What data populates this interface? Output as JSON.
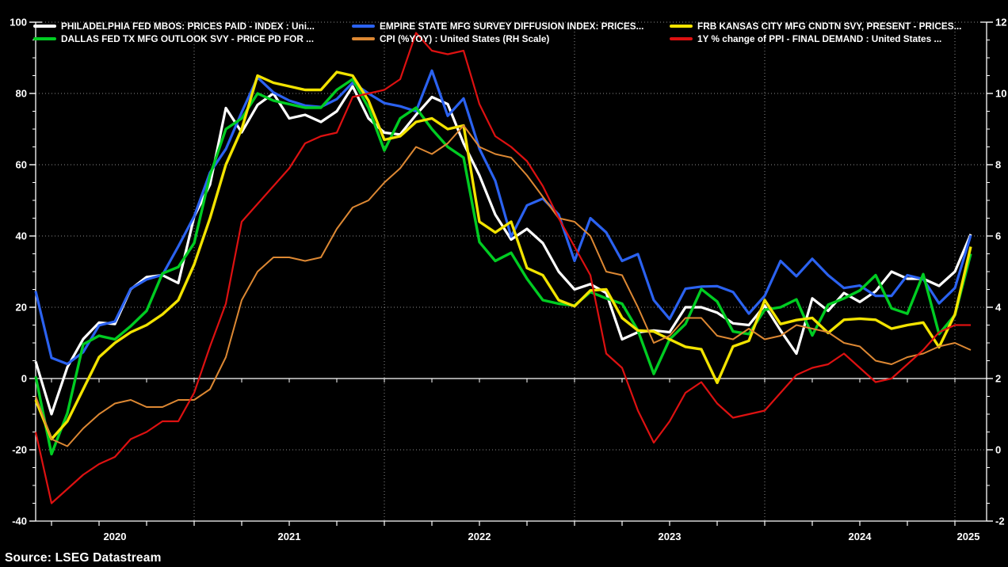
{
  "window": {
    "background": "#000000"
  },
  "source": "Source: LSEG Datastream",
  "legend": {
    "items": [
      {
        "series": "philly",
        "label": "PHILADELPHIA FED MBOS: PRICES PAID - INDEX : Uni...",
        "color": "#ffffff"
      },
      {
        "series": "dallas",
        "label": "DALLAS FED TX MFG OUTLOOK SVY - PRICE PD FOR ...",
        "color": "#00cc22"
      },
      {
        "series": "empire",
        "label": "EMPIRE STATE MFG SURVEY DIFFUSION INDEX: PRICES...",
        "color": "#2b62f0"
      },
      {
        "series": "cpi",
        "label": "CPI (%YOY) : United States (RH Scale)",
        "color": "#dd8833"
      },
      {
        "series": "kc",
        "label": "FRB KANSAS CITY MFG CNDTN SVY, PRESENT - PRICES...",
        "color": "#f2e300"
      },
      {
        "series": "ppi",
        "label": "1Y % change of PPI - FINAL DEMAND : United States ...",
        "color": "#dd1111"
      }
    ]
  },
  "chart_data": {
    "type": "line",
    "title": "",
    "frequency": "monthly",
    "x_start": "2020-03",
    "x_end": "2025-02",
    "grid": "dotted",
    "legend_position": "top",
    "x_tick_labels": [
      "2020",
      "2021",
      "2022",
      "2023",
      "2024",
      "2025"
    ],
    "left_axis": {
      "min": -40,
      "max": 100,
      "tick_step": 20,
      "tick_labels": [
        "100",
        "80",
        "60",
        "40",
        "20",
        "0",
        "-20",
        "-40"
      ]
    },
    "right_axis": {
      "min": -2,
      "max": 12,
      "tick_step": 2,
      "tick_labels": [
        "12",
        "10",
        "8",
        "6",
        "4",
        "2",
        "0",
        "-2"
      ]
    },
    "series": [
      {
        "key": "philly",
        "name": "PHILADELPHIA FED MBOS: PRICES PAID - INDEX : Uni...",
        "axis": "left",
        "color": "#ffffff",
        "width": 3.2,
        "values": [
          4.8,
          -10,
          3.2,
          11.1,
          15.7,
          15.3,
          25.1,
          28.5,
          29,
          26.8,
          45.4,
          54.4,
          75.9,
          69.1,
          76.8,
          80,
          73,
          74,
          72,
          75,
          82,
          73,
          69,
          68.5,
          74,
          79,
          77,
          66,
          57,
          46,
          39,
          42,
          38,
          30,
          25,
          26.5,
          24,
          11,
          13,
          13.5,
          13,
          20,
          20,
          18.5,
          15.5,
          15,
          20.5,
          13.5,
          7,
          22.5,
          19,
          24,
          21.5,
          24.5,
          30,
          28,
          28,
          26,
          30,
          40.5
        ]
      },
      {
        "key": "empire",
        "name": "EMPIRE STATE MFG SURVEY DIFFUSION INDEX: PRICES...",
        "axis": "left",
        "color": "#2b62f0",
        "width": 3.2,
        "values": [
          24.5,
          5.8,
          4.1,
          7.4,
          14.9,
          16,
          25.2,
          27.8,
          29.1,
          37.1,
          45.5,
          57.8,
          64.4,
          74.7,
          84.5,
          80.3,
          78,
          76.6,
          76.2,
          78.4,
          83,
          80,
          77.3,
          76.4,
          75,
          86.4,
          73.7,
          78.6,
          64.5,
          55.5,
          39.8,
          48.6,
          50.5,
          46,
          33,
          45,
          41,
          33,
          34.9,
          22,
          16.7,
          25.2,
          25.8,
          25.9,
          24.3,
          18.2,
          23.2,
          33,
          28.7,
          33.6,
          29,
          25.4,
          26.1,
          23.2,
          23.2,
          29,
          27.9,
          21.1,
          25.4,
          40.2
        ]
      },
      {
        "key": "dallas",
        "name": "DALLAS FED TX MFG OUTLOOK SVY - PRICE PD FOR ...",
        "axis": "left",
        "color": "#00cc22",
        "width": 3.4,
        "values": [
          0.6,
          -21.2,
          -9.7,
          9.6,
          12,
          11,
          14.7,
          19,
          29.5,
          31.3,
          38,
          57,
          70,
          73,
          80,
          78,
          77,
          76,
          76,
          81,
          84,
          76,
          64,
          73,
          76,
          70,
          65,
          62,
          38.3,
          33,
          35.3,
          28,
          22,
          21,
          20.5,
          24.3,
          22.5,
          21,
          13.5,
          1.3,
          11,
          15.3,
          25.1,
          21.6,
          13.2,
          12.5,
          19.3,
          20,
          22.2,
          12.1,
          20.7,
          22.5,
          24.7,
          29,
          19.7,
          18.2,
          29.3,
          12.5,
          17.8,
          35
        ]
      },
      {
        "key": "kc",
        "name": "FRB KANSAS CITY MFG CNDTN SVY, PRESENT - PRICES...",
        "axis": "left",
        "color": "#f2e300",
        "width": 3.4,
        "values": [
          -6,
          -17,
          -12,
          -3,
          6,
          10,
          13,
          15,
          18,
          22,
          32,
          45,
          60,
          70,
          85,
          83,
          82,
          81,
          81,
          86,
          85,
          78,
          67,
          68,
          72,
          73,
          70,
          71,
          44,
          41,
          44,
          31,
          29,
          22,
          20.3,
          24.7,
          25,
          17,
          13.5,
          13.2,
          11,
          8.9,
          8.2,
          -1.2,
          9,
          10.6,
          22,
          15.3,
          16.4,
          17,
          12.8,
          16.5,
          16.8,
          16.5,
          14,
          15,
          15.7,
          8.8,
          18,
          37
        ]
      },
      {
        "key": "cpi",
        "name": "CPI (%YOY) : United States (RH Scale)",
        "axis": "right",
        "color": "#dd8833",
        "width": 2,
        "values": [
          1.5,
          0.3,
          0.1,
          0.6,
          1,
          1.3,
          1.4,
          1.2,
          1.2,
          1.4,
          1.4,
          1.7,
          2.6,
          4.2,
          5,
          5.4,
          5.4,
          5.3,
          5.4,
          6.2,
          6.8,
          7,
          7.5,
          7.9,
          8.5,
          8.3,
          8.6,
          9.1,
          8.5,
          8.3,
          8.2,
          7.7,
          7.1,
          6.5,
          6.4,
          6,
          5,
          4.9,
          4,
          3,
          3.2,
          3.7,
          3.7,
          3.2,
          3.1,
          3.4,
          3.1,
          3.2,
          3.5,
          3.4,
          3.3,
          3,
          2.9,
          2.5,
          2.4,
          2.6,
          2.7,
          2.9,
          3,
          2.8
        ]
      },
      {
        "key": "ppi",
        "name": "1Y % change of PPI - FINAL DEMAND : United States ...",
        "axis": "right",
        "color": "#dd1111",
        "width": 2.2,
        "values": [
          0.5,
          -1.5,
          -1.1,
          -0.7,
          -0.4,
          -0.2,
          0.3,
          0.5,
          0.8,
          0.8,
          1.6,
          2.9,
          4.1,
          6.4,
          6.9,
          7.4,
          7.9,
          8.6,
          8.8,
          8.9,
          9.9,
          10,
          10.1,
          10.4,
          11.7,
          11.2,
          11.1,
          11.2,
          9.7,
          8.8,
          8.5,
          8.1,
          7.4,
          6.5,
          5.7,
          4.9,
          2.7,
          2.3,
          1.1,
          0.2,
          0.8,
          1.6,
          1.9,
          1.3,
          0.9,
          1,
          1.1,
          1.6,
          2.1,
          2.3,
          2.4,
          2.7,
          2.3,
          1.9,
          2,
          2.4,
          2.8,
          3.3,
          3.5,
          3.5
        ]
      }
    ]
  }
}
